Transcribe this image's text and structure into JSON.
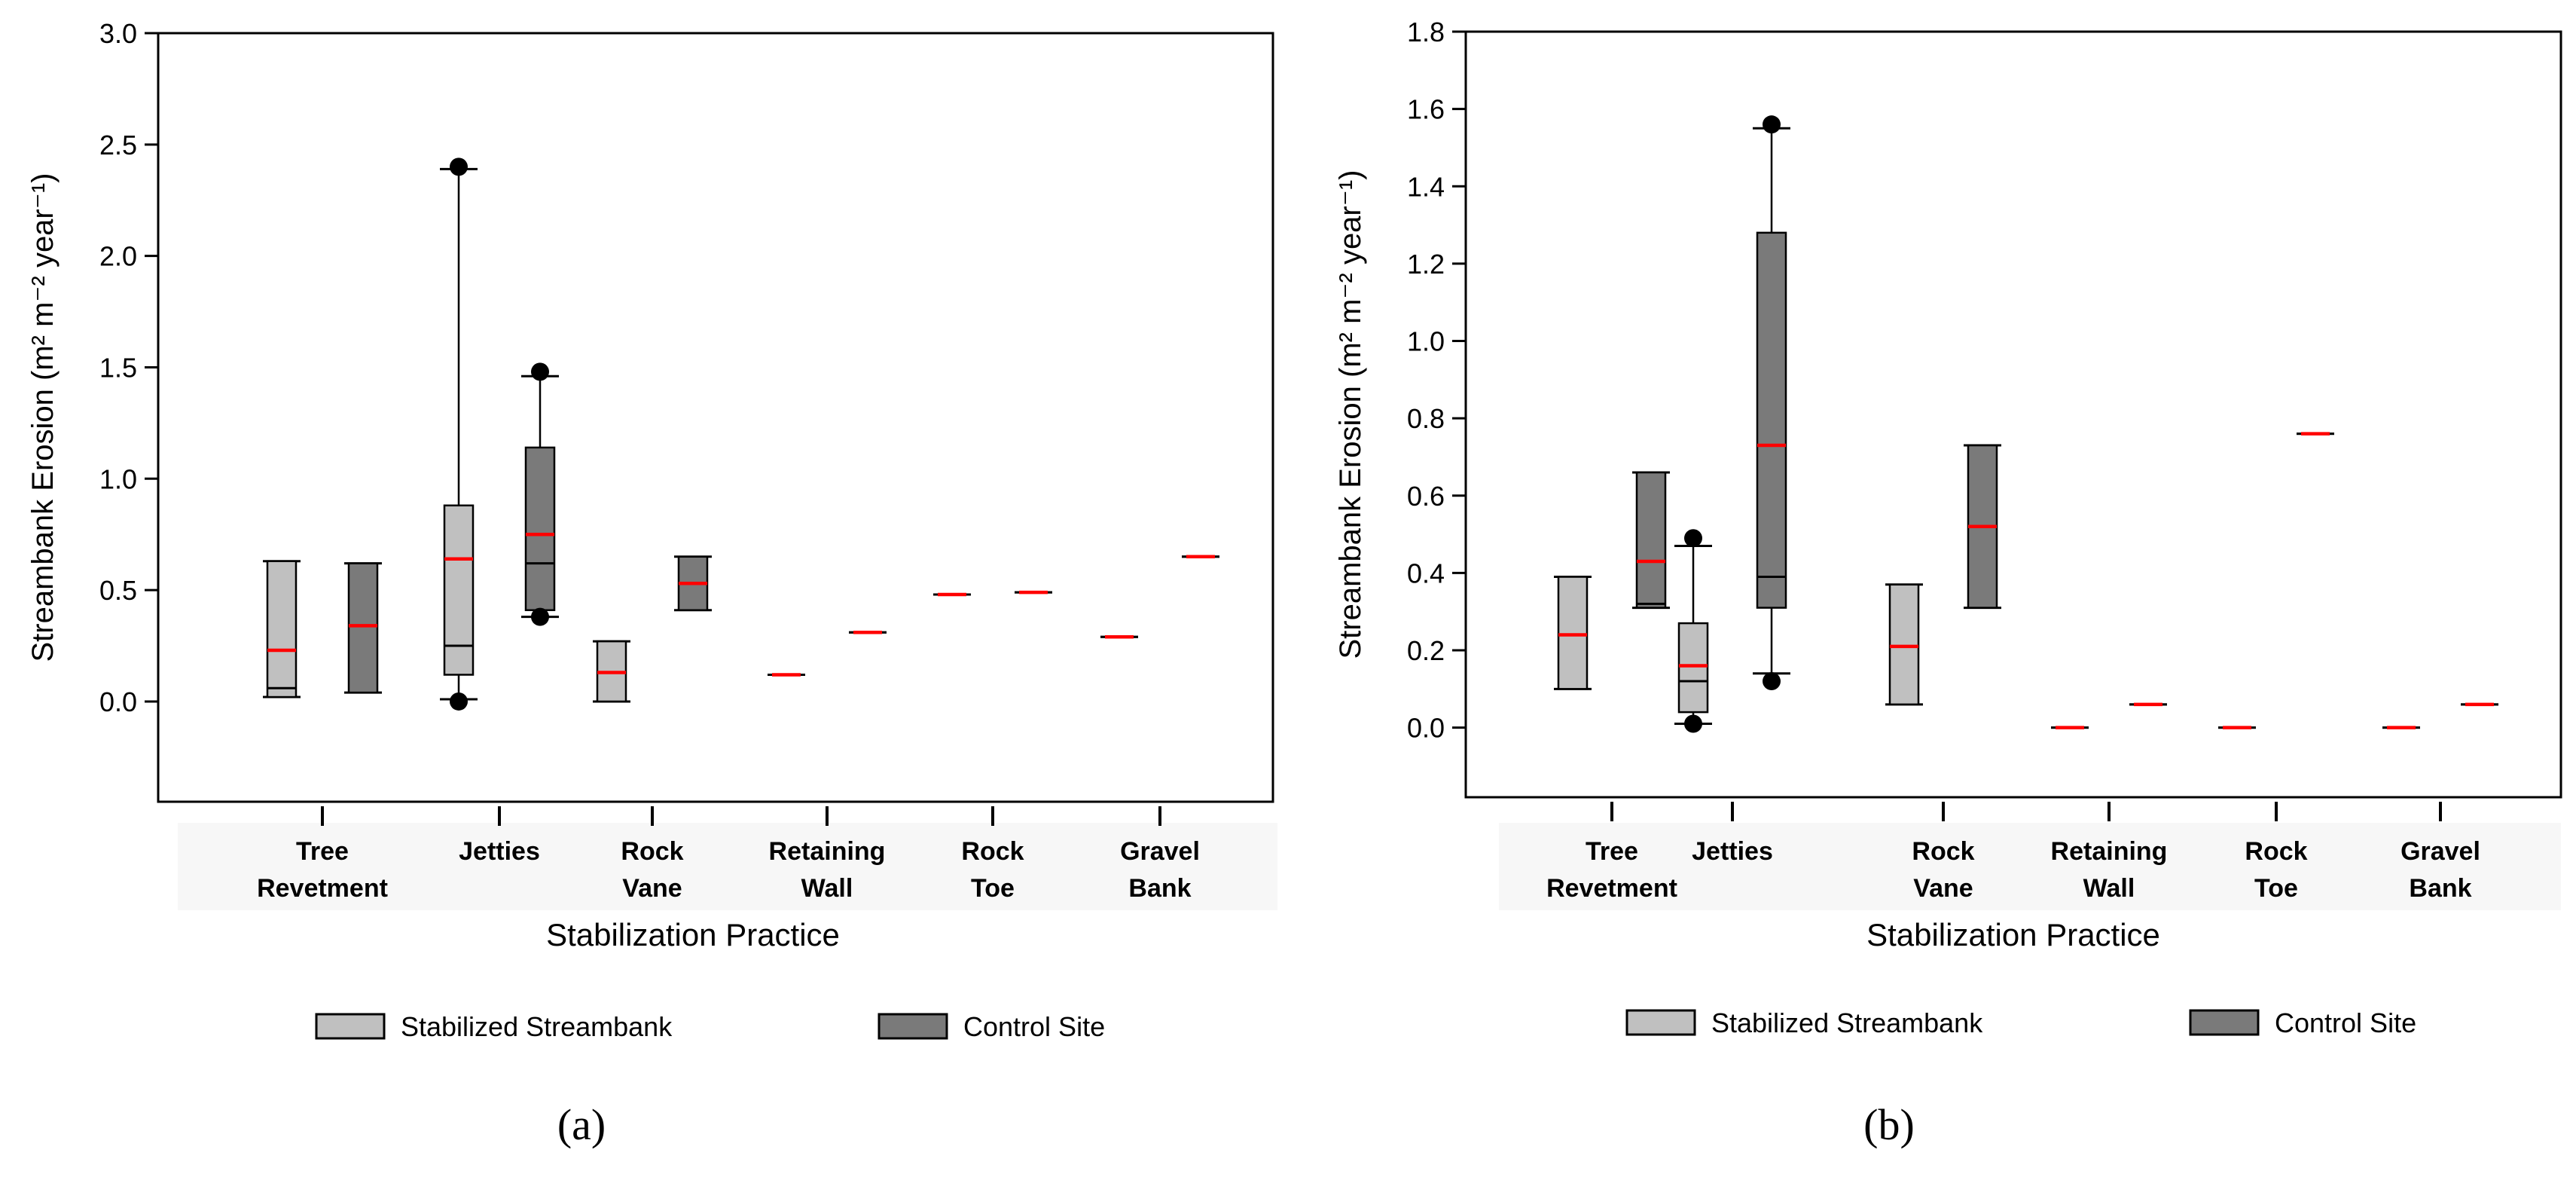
{
  "chart_data": [
    {
      "type": "boxplot",
      "panel_label": "(a)",
      "xlabel": "Stabilization Practice",
      "ylabel": "Streambank Erosion (m² m⁻² year⁻¹)",
      "ylim": [
        -0.45,
        3.0
      ],
      "yticks": [
        "0.0",
        "0.5",
        "1.0",
        "1.5",
        "2.0",
        "2.5",
        "3.0"
      ],
      "ytick_values": [
        0,
        0.5,
        1.0,
        1.5,
        2.0,
        2.5,
        3.0
      ],
      "categories": [
        {
          "line1": "Tree",
          "line2": "Revetment"
        },
        {
          "line1": "Jetties",
          "line2": ""
        },
        {
          "line1": "Rock",
          "line2": "Vane"
        },
        {
          "line1": "Retaining",
          "line2": "Wall"
        },
        {
          "line1": "Rock",
          "line2": "Toe"
        },
        {
          "line1": "Gravel",
          "line2": "Bank"
        }
      ],
      "series": [
        {
          "name": "Stabilized Streambank",
          "boxes": [
            {
              "category": "Tree Revetment",
              "whisker_low": 0.02,
              "q1": 0.02,
              "median": 0.06,
              "mean": 0.23,
              "q3": 0.63,
              "whisker_high": 0.63,
              "outliers": []
            },
            {
              "category": "Jetties",
              "whisker_low": 0.01,
              "q1": 0.12,
              "median": 0.25,
              "mean": 0.64,
              "q3": 0.88,
              "whisker_high": 2.39,
              "outliers": [
                0.0,
                2.4
              ]
            },
            {
              "category": "Rock Vane",
              "whisker_low": 0.0,
              "q1": 0.0,
              "median": 0.13,
              "mean": 0.13,
              "q3": 0.27,
              "whisker_high": 0.27,
              "outliers": []
            },
            {
              "category": "Retaining Wall",
              "whisker_low": 0.12,
              "q1": 0.12,
              "median": 0.12,
              "mean": 0.12,
              "q3": 0.12,
              "whisker_high": 0.12,
              "outliers": []
            },
            {
              "category": "Rock Toe",
              "whisker_low": 0.48,
              "q1": 0.48,
              "median": 0.48,
              "mean": 0.48,
              "q3": 0.48,
              "whisker_high": 0.48,
              "outliers": []
            },
            {
              "category": "Gravel Bank",
              "whisker_low": 0.29,
              "q1": 0.29,
              "median": 0.29,
              "mean": 0.29,
              "q3": 0.29,
              "whisker_high": 0.29,
              "outliers": []
            }
          ]
        },
        {
          "name": "Control Site",
          "boxes": [
            {
              "category": "Tree Revetment",
              "whisker_low": 0.04,
              "q1": 0.04,
              "median": 0.34,
              "mean": 0.34,
              "q3": 0.62,
              "whisker_high": 0.62,
              "outliers": []
            },
            {
              "category": "Jetties",
              "whisker_low": 0.38,
              "q1": 0.41,
              "median": 0.62,
              "mean": 0.75,
              "q3": 1.14,
              "whisker_high": 1.46,
              "outliers": [
                0.38,
                1.48
              ]
            },
            {
              "category": "Rock Vane",
              "whisker_low": 0.41,
              "q1": 0.41,
              "median": 0.53,
              "mean": 0.53,
              "q3": 0.65,
              "whisker_high": 0.65,
              "outliers": []
            },
            {
              "category": "Retaining Wall",
              "whisker_low": 0.31,
              "q1": 0.31,
              "median": 0.31,
              "mean": 0.31,
              "q3": 0.31,
              "whisker_high": 0.31,
              "outliers": []
            },
            {
              "category": "Rock Toe",
              "whisker_low": 0.49,
              "q1": 0.49,
              "median": 0.49,
              "mean": 0.49,
              "q3": 0.49,
              "whisker_high": 0.49,
              "outliers": []
            },
            {
              "category": "Gravel Bank",
              "whisker_low": 0.65,
              "q1": 0.65,
              "median": 0.65,
              "mean": 0.65,
              "q3": 0.65,
              "whisker_high": 0.65,
              "outliers": []
            }
          ]
        }
      ]
    },
    {
      "type": "boxplot",
      "panel_label": "(b)",
      "xlabel": "Stabilization Practice",
      "ylabel": "Streambank Erosion (m² m⁻² year⁻¹)",
      "ylim": [
        -0.18,
        1.8
      ],
      "yticks": [
        "0.0",
        "0.2",
        "0.4",
        "0.6",
        "0.8",
        "1.0",
        "1.2",
        "1.4",
        "1.6",
        "1.8"
      ],
      "ytick_values": [
        0,
        0.2,
        0.4,
        0.6,
        0.8,
        1.0,
        1.2,
        1.4,
        1.6,
        1.8
      ],
      "categories": [
        {
          "line1": "Tree",
          "line2": "Revetment"
        },
        {
          "line1": "Jetties",
          "line2": ""
        },
        {
          "line1": "Rock",
          "line2": "Vane"
        },
        {
          "line1": "Retaining",
          "line2": "Wall"
        },
        {
          "line1": "Rock",
          "line2": "Toe"
        },
        {
          "line1": "Gravel",
          "line2": "Bank"
        }
      ],
      "series": [
        {
          "name": "Stabilized Streambank",
          "boxes": [
            {
              "category": "Tree Revetment",
              "whisker_low": 0.1,
              "q1": 0.1,
              "median": 0.24,
              "mean": 0.24,
              "q3": 0.39,
              "whisker_high": 0.39,
              "outliers": []
            },
            {
              "category": "Jetties",
              "whisker_low": 0.01,
              "q1": 0.04,
              "median": 0.12,
              "mean": 0.16,
              "q3": 0.27,
              "whisker_high": 0.47,
              "outliers": [
                0.01,
                0.49
              ]
            },
            {
              "category": "Rock Vane",
              "whisker_low": 0.06,
              "q1": 0.06,
              "median": 0.21,
              "mean": 0.21,
              "q3": 0.37,
              "whisker_high": 0.37,
              "outliers": []
            },
            {
              "category": "Retaining Wall",
              "whisker_low": 0.0,
              "q1": 0.0,
              "median": 0.0,
              "mean": 0.0,
              "q3": 0.0,
              "whisker_high": 0.0,
              "outliers": []
            },
            {
              "category": "Rock Toe",
              "whisker_low": 0.0,
              "q1": 0.0,
              "median": 0.0,
              "mean": 0.0,
              "q3": 0.0,
              "whisker_high": 0.0,
              "outliers": []
            },
            {
              "category": "Gravel Bank",
              "whisker_low": 0.0,
              "q1": 0.0,
              "median": 0.0,
              "mean": 0.0,
              "q3": 0.0,
              "whisker_high": 0.0,
              "outliers": []
            }
          ]
        },
        {
          "name": "Control Site",
          "boxes": [
            {
              "category": "Tree Revetment",
              "whisker_low": 0.31,
              "q1": 0.31,
              "median": 0.32,
              "mean": 0.43,
              "q3": 0.66,
              "whisker_high": 0.66,
              "outliers": []
            },
            {
              "category": "Jetties",
              "whisker_low": 0.14,
              "q1": 0.31,
              "median": 0.39,
              "mean": 0.73,
              "q3": 1.28,
              "whisker_high": 1.55,
              "outliers": [
                0.12,
                1.56
              ]
            },
            {
              "category": "Rock Vane",
              "whisker_low": 0.31,
              "q1": 0.31,
              "median": 0.52,
              "mean": 0.52,
              "q3": 0.73,
              "whisker_high": 0.73,
              "outliers": []
            },
            {
              "category": "Retaining Wall",
              "whisker_low": 0.06,
              "q1": 0.06,
              "median": 0.06,
              "mean": 0.06,
              "q3": 0.06,
              "whisker_high": 0.06,
              "outliers": []
            },
            {
              "category": "Rock Toe",
              "whisker_low": 0.76,
              "q1": 0.76,
              "median": 0.76,
              "mean": 0.76,
              "q3": 0.76,
              "whisker_high": 0.76,
              "outliers": []
            },
            {
              "category": "Gravel Bank",
              "whisker_low": 0.06,
              "q1": 0.06,
              "median": 0.06,
              "mean": 0.06,
              "q3": 0.06,
              "whisker_high": 0.06,
              "outliers": []
            }
          ]
        }
      ]
    }
  ],
  "legend": {
    "items": [
      {
        "label": "Stabilized Streambank",
        "color": "#c0c0c0"
      },
      {
        "label": "Control Site",
        "color": "#7a7a7a"
      }
    ]
  },
  "colors": {
    "stabilized": "#c0c0c0",
    "control": "#7a7a7a",
    "mean_line": "#ff0000",
    "axis": "#000000"
  }
}
